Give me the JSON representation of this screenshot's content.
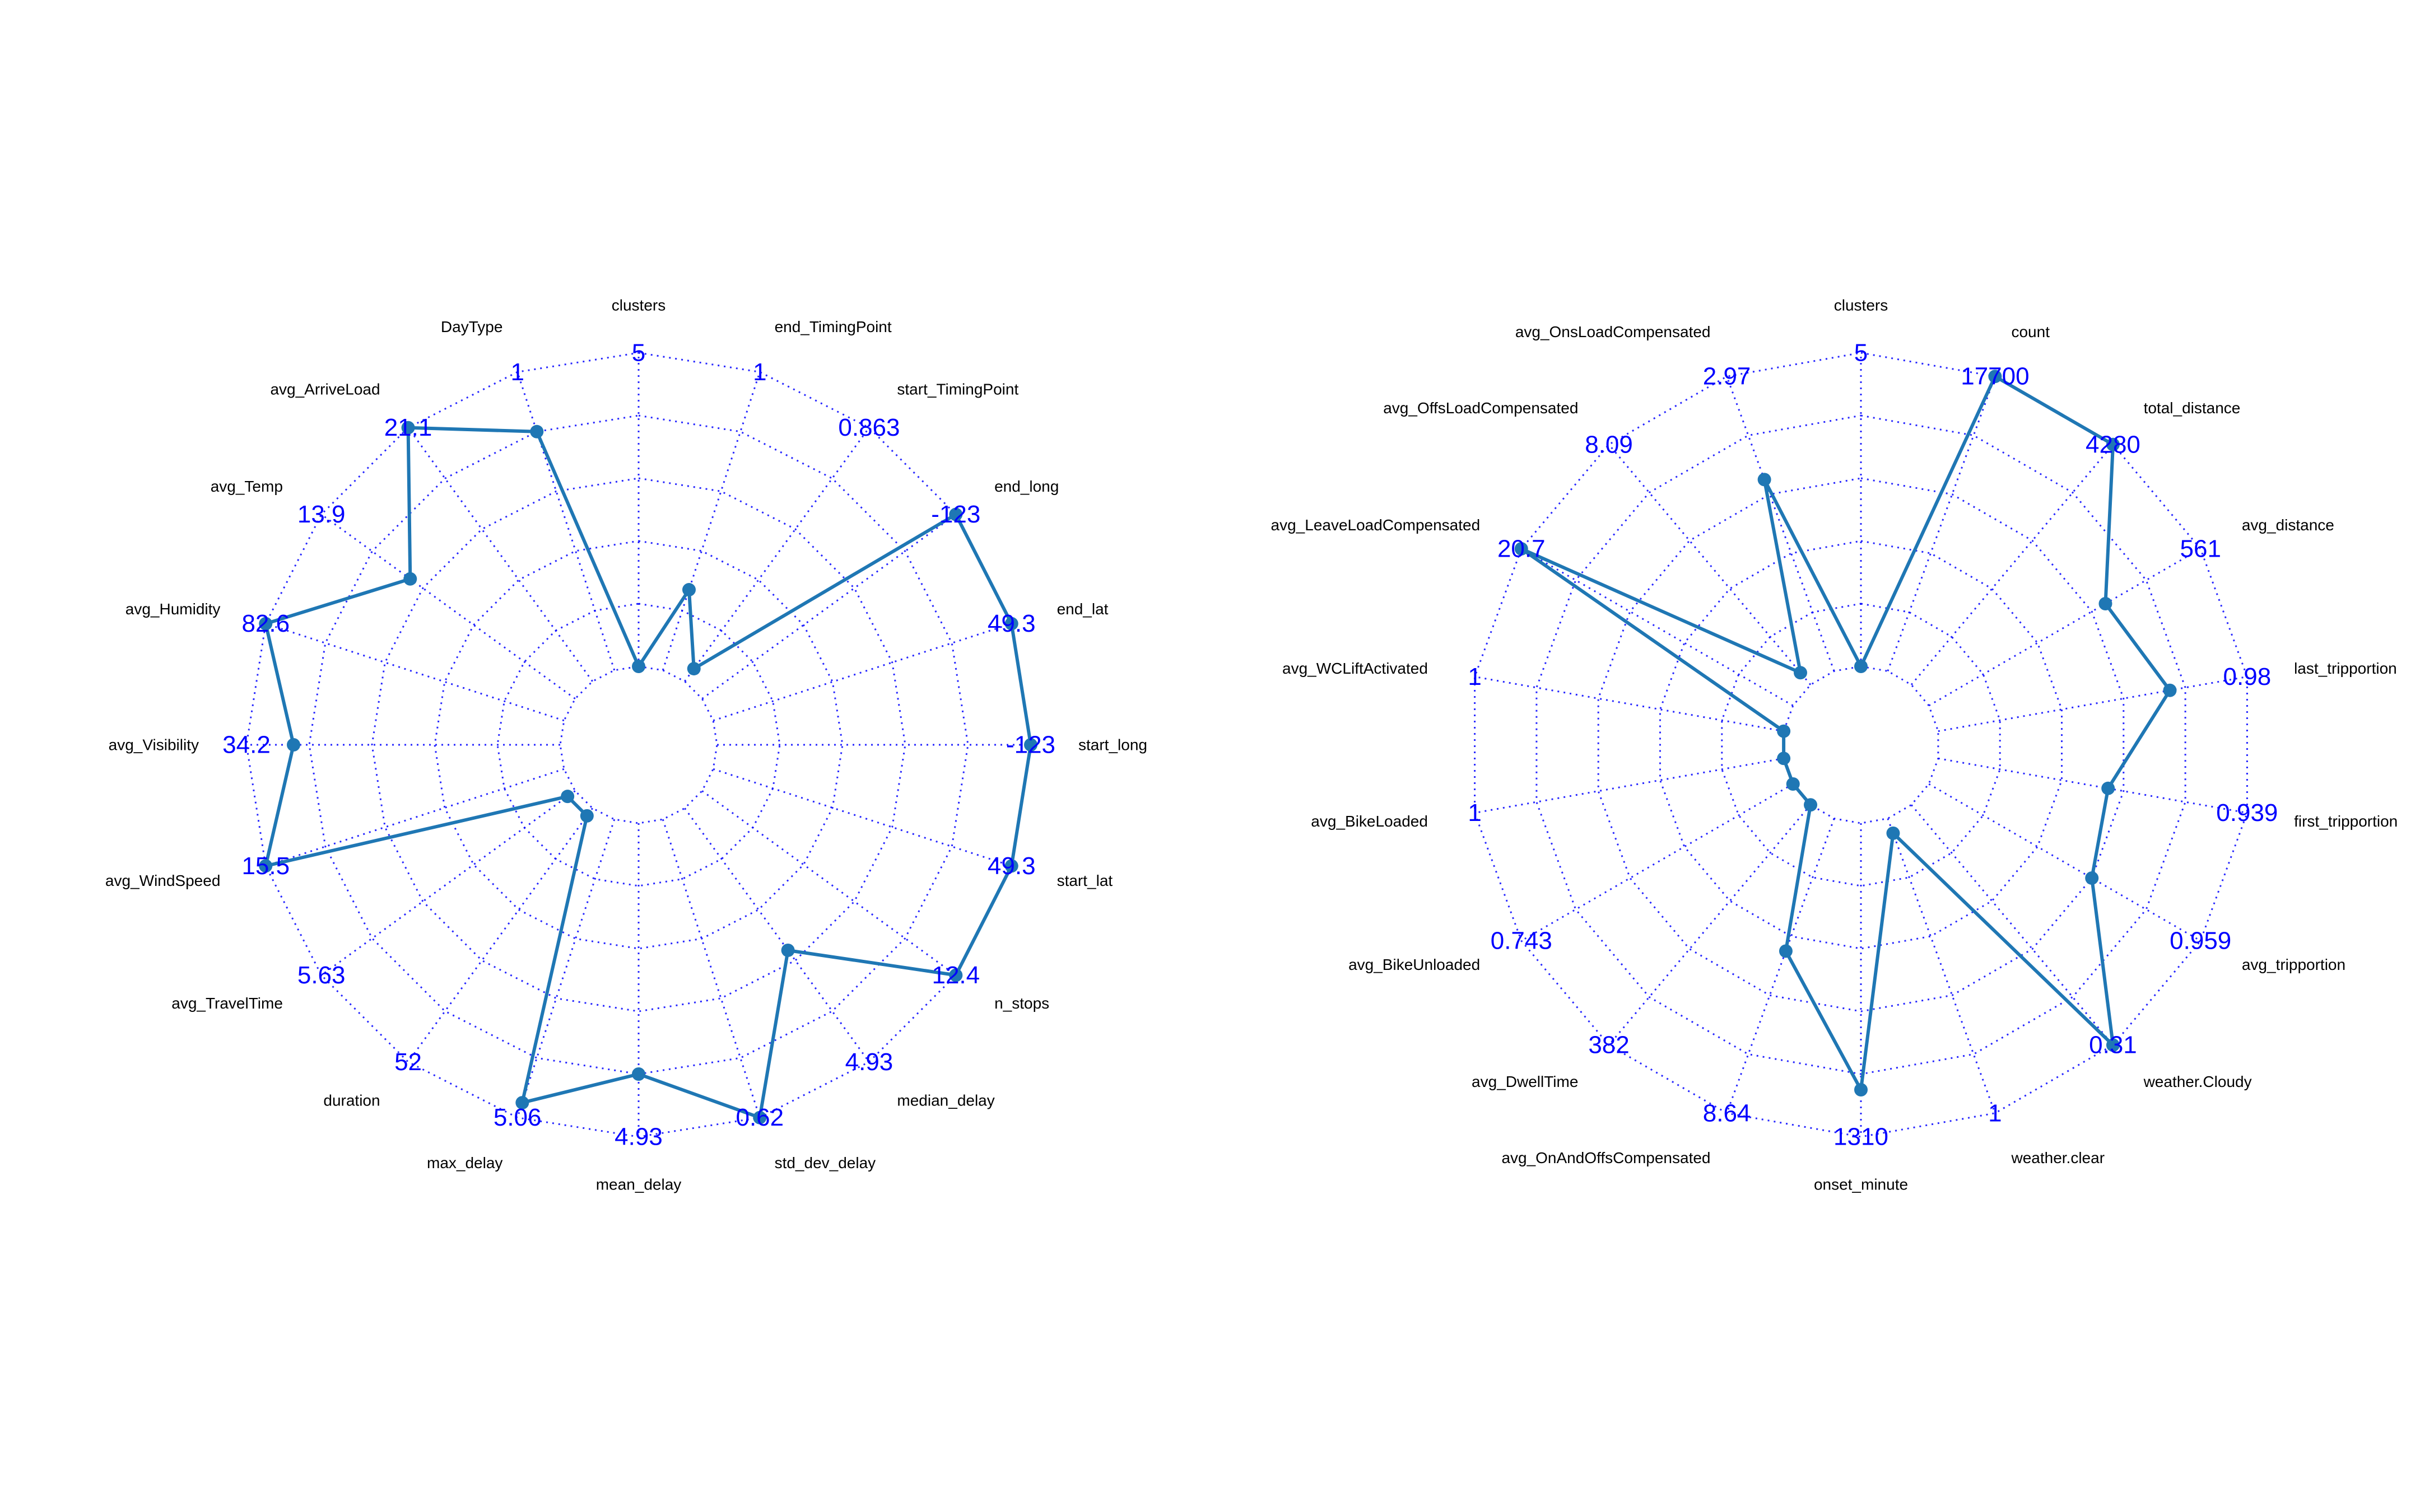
{
  "chart_data": [
    {
      "type": "radar",
      "grid": "dotted",
      "line_color": "#1f77b4",
      "grid_color": "#0000ff",
      "label_color": "#0000ff",
      "axes": [
        {
          "name": "clusters",
          "max_label": "5",
          "value": 0.0
        },
        {
          "name": "end_TimingPoint",
          "max_label": "1",
          "value": 0.27
        },
        {
          "name": "start_TimingPoint",
          "max_label": "0.863",
          "value": 0.05
        },
        {
          "name": "end_long",
          "max_label": "-123",
          "value": 1.0
        },
        {
          "name": "end_lat",
          "max_label": "49.3",
          "value": 1.0
        },
        {
          "name": "start_long",
          "max_label": "-123",
          "value": 1.0
        },
        {
          "name": "start_lat",
          "max_label": "49.3",
          "value": 1.0
        },
        {
          "name": "n_stops",
          "max_label": "12.4",
          "value": 1.0
        },
        {
          "name": "median_delay",
          "max_label": "4.93",
          "value": 0.56
        },
        {
          "name": "std_dev_delay",
          "max_label": "0.62",
          "value": 1.0
        },
        {
          "name": "mean_delay",
          "max_label": "4.93",
          "value": 0.8
        },
        {
          "name": "max_delay",
          "max_label": "5.06",
          "value": 0.95
        },
        {
          "name": "duration",
          "max_label": "52",
          "value": 0.03
        },
        {
          "name": "avg_TravelTime",
          "max_label": "5.63",
          "value": 0.03
        },
        {
          "name": "avg_WindSpeed",
          "max_label": "15.5",
          "value": 1.0
        },
        {
          "name": "avg_Visibility",
          "max_label": "34.2",
          "value": 0.85
        },
        {
          "name": "avg_Humidity",
          "max_label": "82.6",
          "value": 1.0
        },
        {
          "name": "avg_Temp",
          "max_label": "13.9",
          "value": 0.65
        },
        {
          "name": "avg_ArriveLoad",
          "max_label": "21.1",
          "value": 1.0
        },
        {
          "name": "DayType",
          "max_label": "1",
          "value": 0.8
        }
      ]
    },
    {
      "type": "radar",
      "grid": "dotted",
      "line_color": "#1f77b4",
      "grid_color": "#0000ff",
      "label_color": "#0000ff",
      "axes": [
        {
          "name": "clusters",
          "max_label": "5",
          "value": 0.0
        },
        {
          "name": "count",
          "max_label": "17700",
          "value": 1.0
        },
        {
          "name": "total_distance",
          "max_label": "4280",
          "value": 1.0
        },
        {
          "name": "avg_distance",
          "max_label": "561",
          "value": 0.65
        },
        {
          "name": "last_tripportion",
          "max_label": "0.98",
          "value": 0.75
        },
        {
          "name": "first_tripportion",
          "max_label": "0.939",
          "value": 0.55
        },
        {
          "name": "avg_tripportion",
          "max_label": "0.959",
          "value": 0.6
        },
        {
          "name": "weather.Cloudy",
          "max_label": "0.31",
          "value": 1.0
        },
        {
          "name": "weather.clear",
          "max_label": "1",
          "value": 0.05
        },
        {
          "name": "onset_minute",
          "max_label": "1310",
          "value": 0.85
        },
        {
          "name": "avg_OnAndOffsCompensated",
          "max_label": "8.64",
          "value": 0.45
        },
        {
          "name": "avg_DwellTime",
          "max_label": "382",
          "value": 0.0
        },
        {
          "name": "avg_BikeUnloaded",
          "max_label": "0.743",
          "value": 0.0
        },
        {
          "name": "avg_BikeLoaded",
          "max_label": "1",
          "value": 0.0
        },
        {
          "name": "avg_WCLiftActivated",
          "max_label": "1",
          "value": 0.0
        },
        {
          "name": "avg_LeaveLoadCompensated",
          "max_label": "20.7",
          "value": 1.0
        },
        {
          "name": "avg_OffsLoadCompensated",
          "max_label": "8.09",
          "value": 0.05
        },
        {
          "name": "avg_OnsLoadCompensated",
          "max_label": "2.97",
          "value": 0.65
        }
      ]
    }
  ]
}
